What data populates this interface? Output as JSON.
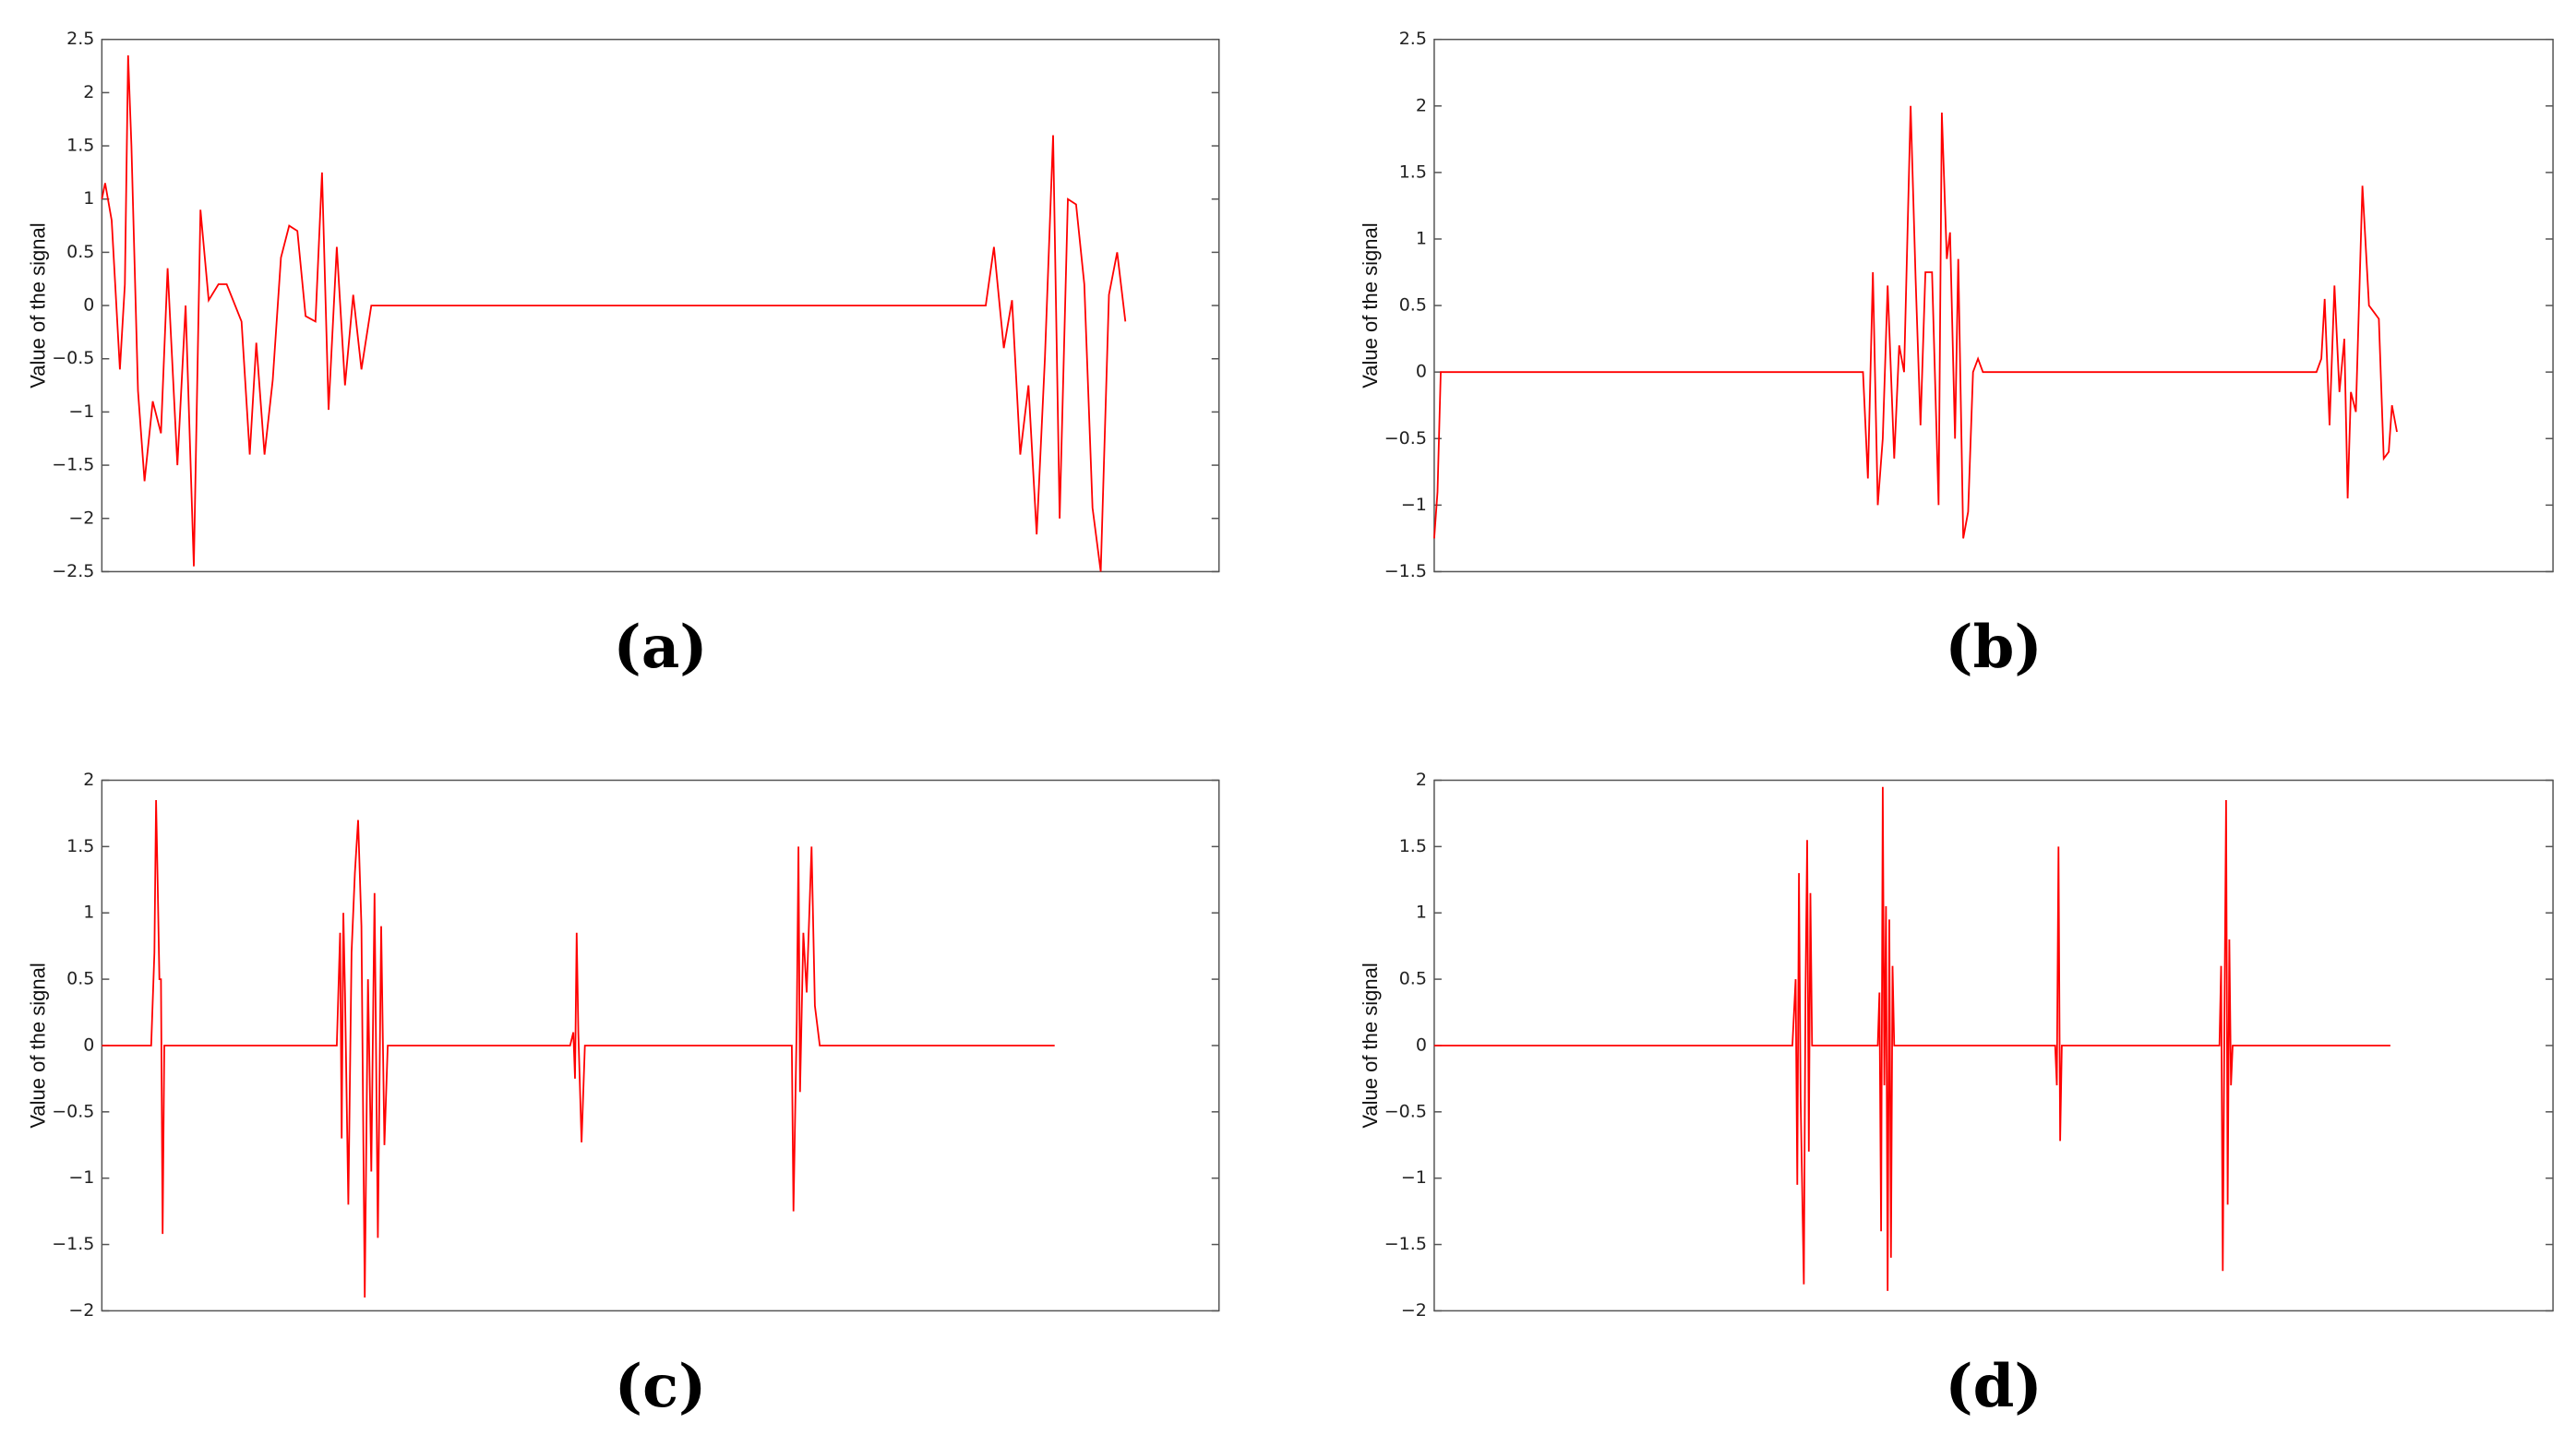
{
  "chart_data": [
    {
      "type": "line",
      "caption": "(a)",
      "y_label": "Value of the signal",
      "color": "#ff0000",
      "xlim": [
        0,
        680
      ],
      "ylim": [
        -2.5,
        2.5
      ],
      "yticks": [
        {
          "value": -2.5,
          "label": "−2.5"
        },
        {
          "value": -2,
          "label": "−2"
        },
        {
          "value": -1.5,
          "label": "−1.5"
        },
        {
          "value": -1,
          "label": "−1"
        },
        {
          "value": -0.5,
          "label": "−0.5"
        },
        0,
        0.5,
        1,
        1.5,
        2,
        2.5
      ],
      "x": [
        0,
        2,
        6,
        11,
        14,
        16,
        18,
        22,
        26,
        31,
        36,
        40,
        46,
        51,
        56,
        60,
        65,
        71,
        76,
        85,
        90,
        94,
        99,
        104,
        109,
        114,
        119,
        124,
        130,
        134,
        138,
        143,
        148,
        153,
        158,
        164,
        538,
        543,
        549,
        554,
        559,
        564,
        569,
        574,
        579,
        583,
        588,
        593,
        598,
        603,
        608,
        613,
        618,
        623
      ],
      "values": [
        1.0,
        1.15,
        0.8,
        -0.6,
        0.2,
        2.35,
        1.5,
        -0.8,
        -1.65,
        -0.9,
        -1.2,
        0.35,
        -1.5,
        0,
        -2.45,
        0.9,
        0.05,
        0.2,
        0.2,
        -0.15,
        -1.4,
        -0.35,
        -1.4,
        -0.7,
        0.45,
        0.75,
        0.7,
        -0.1,
        -0.15,
        1.25,
        -0.98,
        0.55,
        -0.75,
        0.1,
        -0.6,
        0,
        0,
        0.55,
        -0.4,
        0.05,
        -1.4,
        -0.75,
        -2.15,
        -0.5,
        1.6,
        -2.0,
        1.0,
        0.95,
        0.2,
        -1.9,
        -2.5,
        0.1,
        0.5,
        -0.15
      ]
    },
    {
      "type": "line",
      "caption": "(b)",
      "y_label": "Value of the signal",
      "color": "#ff0000",
      "xlim": [
        0,
        681
      ],
      "ylim": [
        -1.5,
        2.5
      ],
      "yticks": [
        {
          "value": -1.5,
          "label": "−1.5"
        },
        {
          "value": -1,
          "label": "−1"
        },
        {
          "value": -0.5,
          "label": "−0.5"
        },
        0,
        0.5,
        1,
        1.5,
        2,
        2.5
      ],
      "x": [
        0,
        2,
        4,
        261,
        264,
        267,
        270,
        273,
        276,
        280,
        283,
        286,
        290,
        293,
        296,
        299,
        303,
        307,
        309,
        312,
        314,
        317,
        319,
        322,
        325,
        328,
        331,
        334,
        537,
        540,
        542,
        545,
        548,
        551,
        554,
        556,
        558,
        561,
        565,
        569,
        572,
        575,
        578,
        581,
        583,
        586
      ],
      "values": [
        -1.25,
        -0.9,
        0,
        0,
        -0.8,
        0.75,
        -1.0,
        -0.5,
        0.65,
        -0.65,
        0.2,
        0.0,
        2.0,
        0.7,
        -0.4,
        0.75,
        0.75,
        -1.0,
        1.95,
        0.85,
        1.05,
        -0.5,
        0.85,
        -1.25,
        -1.05,
        0.0,
        0.1,
        0,
        0,
        0.1,
        0.55,
        -0.4,
        0.65,
        -0.15,
        0.25,
        -0.95,
        -0.15,
        -0.3,
        1.4,
        0.5,
        0.45,
        0.4,
        -0.65,
        -0.6,
        -0.25,
        -0.45
      ]
    },
    {
      "type": "line",
      "caption": "(c)",
      "y_label": "Value of the signal",
      "color": "#ff0000",
      "xlim": [
        0,
        680
      ],
      "ylim": [
        -2,
        2
      ],
      "yticks": [
        {
          "value": -2,
          "label": "−2"
        },
        {
          "value": -1.5,
          "label": "−1.5"
        },
        {
          "value": -1,
          "label": "−1"
        },
        {
          "value": -0.5,
          "label": "−0.5"
        },
        0,
        0.5,
        1,
        1.5,
        2
      ],
      "x": [
        0,
        30,
        32,
        33,
        34,
        35,
        36,
        37,
        38,
        143,
        145,
        146,
        147,
        148,
        150,
        152,
        154,
        156,
        158,
        160,
        162,
        164,
        166,
        168,
        170,
        172,
        174,
        285,
        287,
        288,
        289,
        290,
        292,
        294,
        420,
        421,
        423,
        424,
        425,
        427,
        429,
        432,
        434,
        437,
        580
      ],
      "values": [
        0,
        0,
        0.7,
        1.85,
        1.2,
        0.5,
        0.5,
        -1.42,
        0,
        0,
        0.85,
        -0.7,
        1.0,
        0.4,
        -1.2,
        0.7,
        1.3,
        1.7,
        0.9,
        -1.9,
        0.5,
        -0.95,
        1.15,
        -1.45,
        0.9,
        -0.75,
        0,
        0,
        0.1,
        -0.25,
        0.85,
        0.1,
        -0.73,
        0,
        0,
        -1.25,
        0.2,
        1.5,
        -0.35,
        0.85,
        0.4,
        1.5,
        0.3,
        0,
        0
      ]
    },
    {
      "type": "line",
      "caption": "(d)",
      "y_label": "Value of the signal",
      "color": "#ff0000",
      "xlim": [
        0,
        681
      ],
      "ylim": [
        -2,
        2
      ],
      "yticks": [
        {
          "value": -2,
          "label": "−2"
        },
        {
          "value": -1.5,
          "label": "−1.5"
        },
        {
          "value": -1,
          "label": "−1"
        },
        {
          "value": -0.5,
          "label": "−0.5"
        },
        0,
        0.5,
        1,
        1.5,
        2
      ],
      "x": [
        0,
        218,
        220,
        221,
        222,
        223,
        225,
        226,
        227,
        228,
        229,
        230,
        270,
        271,
        272,
        273,
        274,
        275,
        276,
        277,
        278,
        279,
        280,
        378,
        379,
        380,
        381,
        382,
        478,
        479,
        480,
        481,
        482,
        483,
        484,
        485,
        486,
        582
      ],
      "values": [
        0,
        0,
        0.5,
        -1.05,
        1.3,
        -0.4,
        -1.8,
        0.4,
        1.55,
        -0.8,
        1.15,
        0,
        0,
        0.4,
        -1.4,
        1.95,
        -0.3,
        1.05,
        -1.85,
        0.95,
        -1.6,
        0.6,
        0,
        0,
        -0.3,
        1.5,
        -0.72,
        0,
        0,
        0.6,
        -1.7,
        0.2,
        1.85,
        -1.2,
        0.8,
        -0.3,
        0,
        0
      ]
    }
  ]
}
